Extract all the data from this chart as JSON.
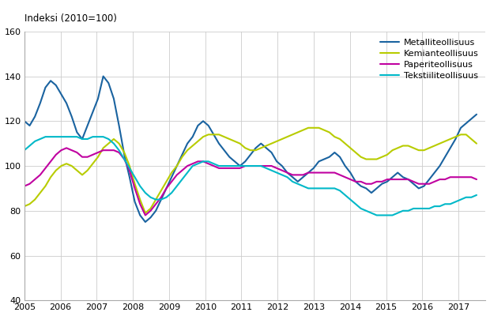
{
  "ylabel": "Indeksi (2010=100)",
  "ylim": [
    40,
    160
  ],
  "yticks": [
    40,
    60,
    80,
    100,
    120,
    140,
    160
  ],
  "xlim": [
    2005.0,
    2017.75
  ],
  "background_color": "#ffffff",
  "grid_color": "#cccccc",
  "series": {
    "Metalliteollisuus": {
      "color": "#1a63a0",
      "lw": 1.5,
      "data": [
        120,
        118,
        122,
        128,
        135,
        138,
        136,
        132,
        128,
        122,
        115,
        112,
        118,
        124,
        130,
        140,
        137,
        130,
        118,
        105,
        95,
        84,
        78,
        75,
        77,
        80,
        85,
        90,
        95,
        100,
        105,
        110,
        113,
        118,
        120,
        118,
        114,
        110,
        107,
        104,
        102,
        100,
        102,
        105,
        108,
        110,
        108,
        106,
        102,
        100,
        97,
        95,
        93,
        95,
        97,
        99,
        102,
        103,
        104,
        106,
        104,
        100,
        97,
        93,
        91,
        90,
        88,
        90,
        92,
        93,
        95,
        97,
        95,
        94,
        92,
        90,
        91,
        94,
        97,
        100,
        104,
        108,
        112,
        117,
        119,
        121,
        123
      ]
    },
    "Kemianteollisuus": {
      "color": "#b8cc00",
      "lw": 1.5,
      "data": [
        82,
        83,
        85,
        88,
        91,
        95,
        98,
        100,
        101,
        100,
        98,
        96,
        98,
        101,
        104,
        108,
        110,
        112,
        110,
        106,
        100,
        92,
        85,
        79,
        81,
        85,
        89,
        93,
        97,
        100,
        104,
        107,
        109,
        111,
        113,
        114,
        114,
        114,
        113,
        112,
        111,
        110,
        108,
        107,
        107,
        108,
        109,
        110,
        111,
        112,
        113,
        114,
        115,
        116,
        117,
        117,
        117,
        116,
        115,
        113,
        112,
        110,
        108,
        106,
        104,
        103,
        103,
        103,
        104,
        105,
        107,
        108,
        109,
        109,
        108,
        107,
        107,
        108,
        109,
        110,
        111,
        112,
        113,
        114,
        114,
        112,
        110
      ]
    },
    "Paperiteollisuus": {
      "color": "#c000a0",
      "lw": 1.5,
      "data": [
        91,
        92,
        94,
        96,
        99,
        102,
        105,
        107,
        108,
        107,
        106,
        104,
        104,
        105,
        106,
        107,
        107,
        107,
        106,
        103,
        98,
        90,
        83,
        78,
        80,
        83,
        86,
        90,
        93,
        96,
        98,
        100,
        101,
        102,
        102,
        101,
        100,
        99,
        99,
        99,
        99,
        99,
        100,
        100,
        100,
        100,
        100,
        100,
        99,
        98,
        97,
        96,
        96,
        96,
        97,
        97,
        97,
        97,
        97,
        97,
        96,
        95,
        94,
        93,
        93,
        92,
        92,
        93,
        93,
        94,
        94,
        94,
        94,
        94,
        93,
        92,
        92,
        92,
        93,
        94,
        94,
        95,
        95,
        95,
        95,
        95,
        94
      ]
    },
    "Tekstiiliteollisuus": {
      "color": "#00b8c8",
      "lw": 1.5,
      "data": [
        107,
        109,
        111,
        112,
        113,
        113,
        113,
        113,
        113,
        113,
        113,
        112,
        112,
        113,
        113,
        113,
        112,
        110,
        107,
        103,
        99,
        95,
        91,
        88,
        86,
        85,
        85,
        86,
        88,
        91,
        94,
        97,
        100,
        101,
        102,
        102,
        101,
        100,
        100,
        100,
        100,
        100,
        100,
        100,
        100,
        100,
        99,
        98,
        97,
        96,
        95,
        93,
        92,
        91,
        90,
        90,
        90,
        90,
        90,
        90,
        89,
        87,
        85,
        83,
        81,
        80,
        79,
        78,
        78,
        78,
        78,
        79,
        80,
        80,
        81,
        81,
        81,
        81,
        82,
        82,
        83,
        83,
        84,
        85,
        86,
        86,
        87
      ]
    }
  }
}
